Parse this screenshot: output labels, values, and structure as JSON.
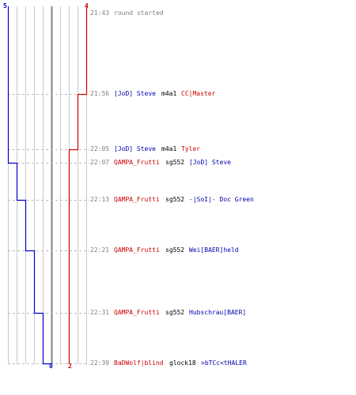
{
  "colors": {
    "team_blue": "#0000cc",
    "team_red": "#cc0000",
    "grid": "#c8c8c8",
    "zero_line": "#808080",
    "time_text": "#808080"
  },
  "counts": {
    "blue_start": "5",
    "red_start": "4",
    "blue_end": "0",
    "red_end": "2"
  },
  "events": [
    {
      "time": "21:43",
      "info": "round started"
    },
    {
      "time": "21:56",
      "killer": "[JoD] Steve",
      "killer_team": "blue",
      "weapon": "m4a1",
      "victim": "CC|Master",
      "victim_team": "red"
    },
    {
      "time": "22:05",
      "killer": "[JoD] Steve",
      "killer_team": "blue",
      "weapon": "m4a1",
      "victim": "Tyler",
      "victim_team": "red"
    },
    {
      "time": "22:07",
      "killer": "QAMPA_Frutti",
      "killer_team": "red",
      "weapon": "sg552",
      "victim": "[JoD] Steve",
      "victim_team": "blue"
    },
    {
      "time": "22:13",
      "killer": "QAMPA_Frutti",
      "killer_team": "red",
      "weapon": "sg552",
      "victim": "-|SoI|- Doc Green",
      "victim_team": "blue"
    },
    {
      "time": "22:21",
      "killer": "QAMPA_Frutti",
      "killer_team": "red",
      "weapon": "sg552",
      "victim": "Wei[BAER]held",
      "victim_team": "blue"
    },
    {
      "time": "22:31",
      "killer": "QAMPA_Frutti",
      "killer_team": "red",
      "weapon": "sg552",
      "victim": "Hubschrau[BAER]",
      "victim_team": "blue"
    },
    {
      "time": "22:39",
      "killer": "BaDWolf|blind",
      "killer_team": "red",
      "weapon": "glock18",
      "victim": ">bTCc<tHALER",
      "victim_team": "blue"
    }
  ],
  "chart_data": {
    "type": "line",
    "title": "",
    "xlabel": "",
    "ylabel": "",
    "x": [
      "21:43",
      "21:56",
      "22:05",
      "22:07",
      "22:13",
      "22:21",
      "22:31",
      "22:39"
    ],
    "series": [
      {
        "values": [
          5,
          5,
          5,
          4,
          3,
          2,
          1,
          0
        ]
      },
      {
        "values": [
          4,
          3,
          2,
          2,
          2,
          2,
          2,
          2
        ]
      }
    ]
  }
}
